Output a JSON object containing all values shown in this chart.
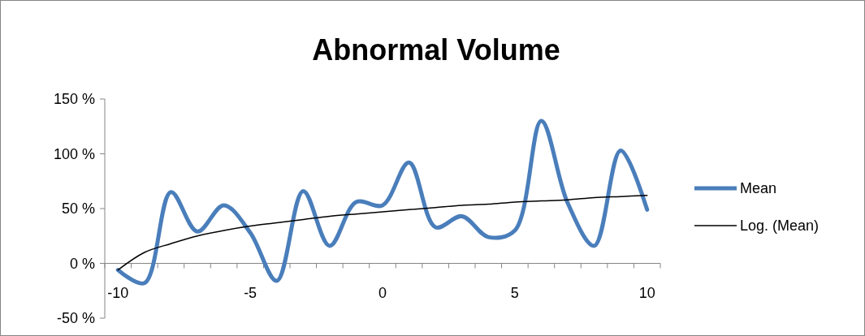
{
  "chart_data": {
    "type": "line",
    "title": "Abnormal Volume",
    "categories": [
      "-10",
      null,
      null,
      null,
      null,
      "-5",
      null,
      null,
      null,
      null,
      "0",
      null,
      null,
      null,
      null,
      "5",
      null,
      null,
      null,
      null,
      "10"
    ],
    "series": [
      {
        "name": "Mean",
        "color": "#4a7ebb",
        "values": [
          -6,
          -18,
          65,
          29,
          53,
          28,
          -16,
          66,
          16,
          56,
          53,
          92,
          33,
          43,
          24,
          30,
          130,
          55,
          16,
          103,
          49
        ]
      },
      {
        "name": "Log. (Mean)",
        "color": "#000000",
        "values": [
          -6,
          10,
          18,
          25,
          30,
          34,
          37,
          40,
          43,
          45,
          47,
          49,
          51,
          53,
          54,
          56,
          57,
          58,
          60,
          61,
          62
        ]
      }
    ],
    "ylim": [
      -50,
      150
    ],
    "yticks": [
      {
        "value": -50,
        "label": "-50 %"
      },
      {
        "value": 0,
        "label": "0 %"
      },
      {
        "value": 50,
        "label": "50 %"
      },
      {
        "value": 100,
        "label": "100 %"
      },
      {
        "value": 150,
        "label": "150 %"
      }
    ],
    "grid": false,
    "legend": "right",
    "marker": "none",
    "line_style": "solid"
  }
}
